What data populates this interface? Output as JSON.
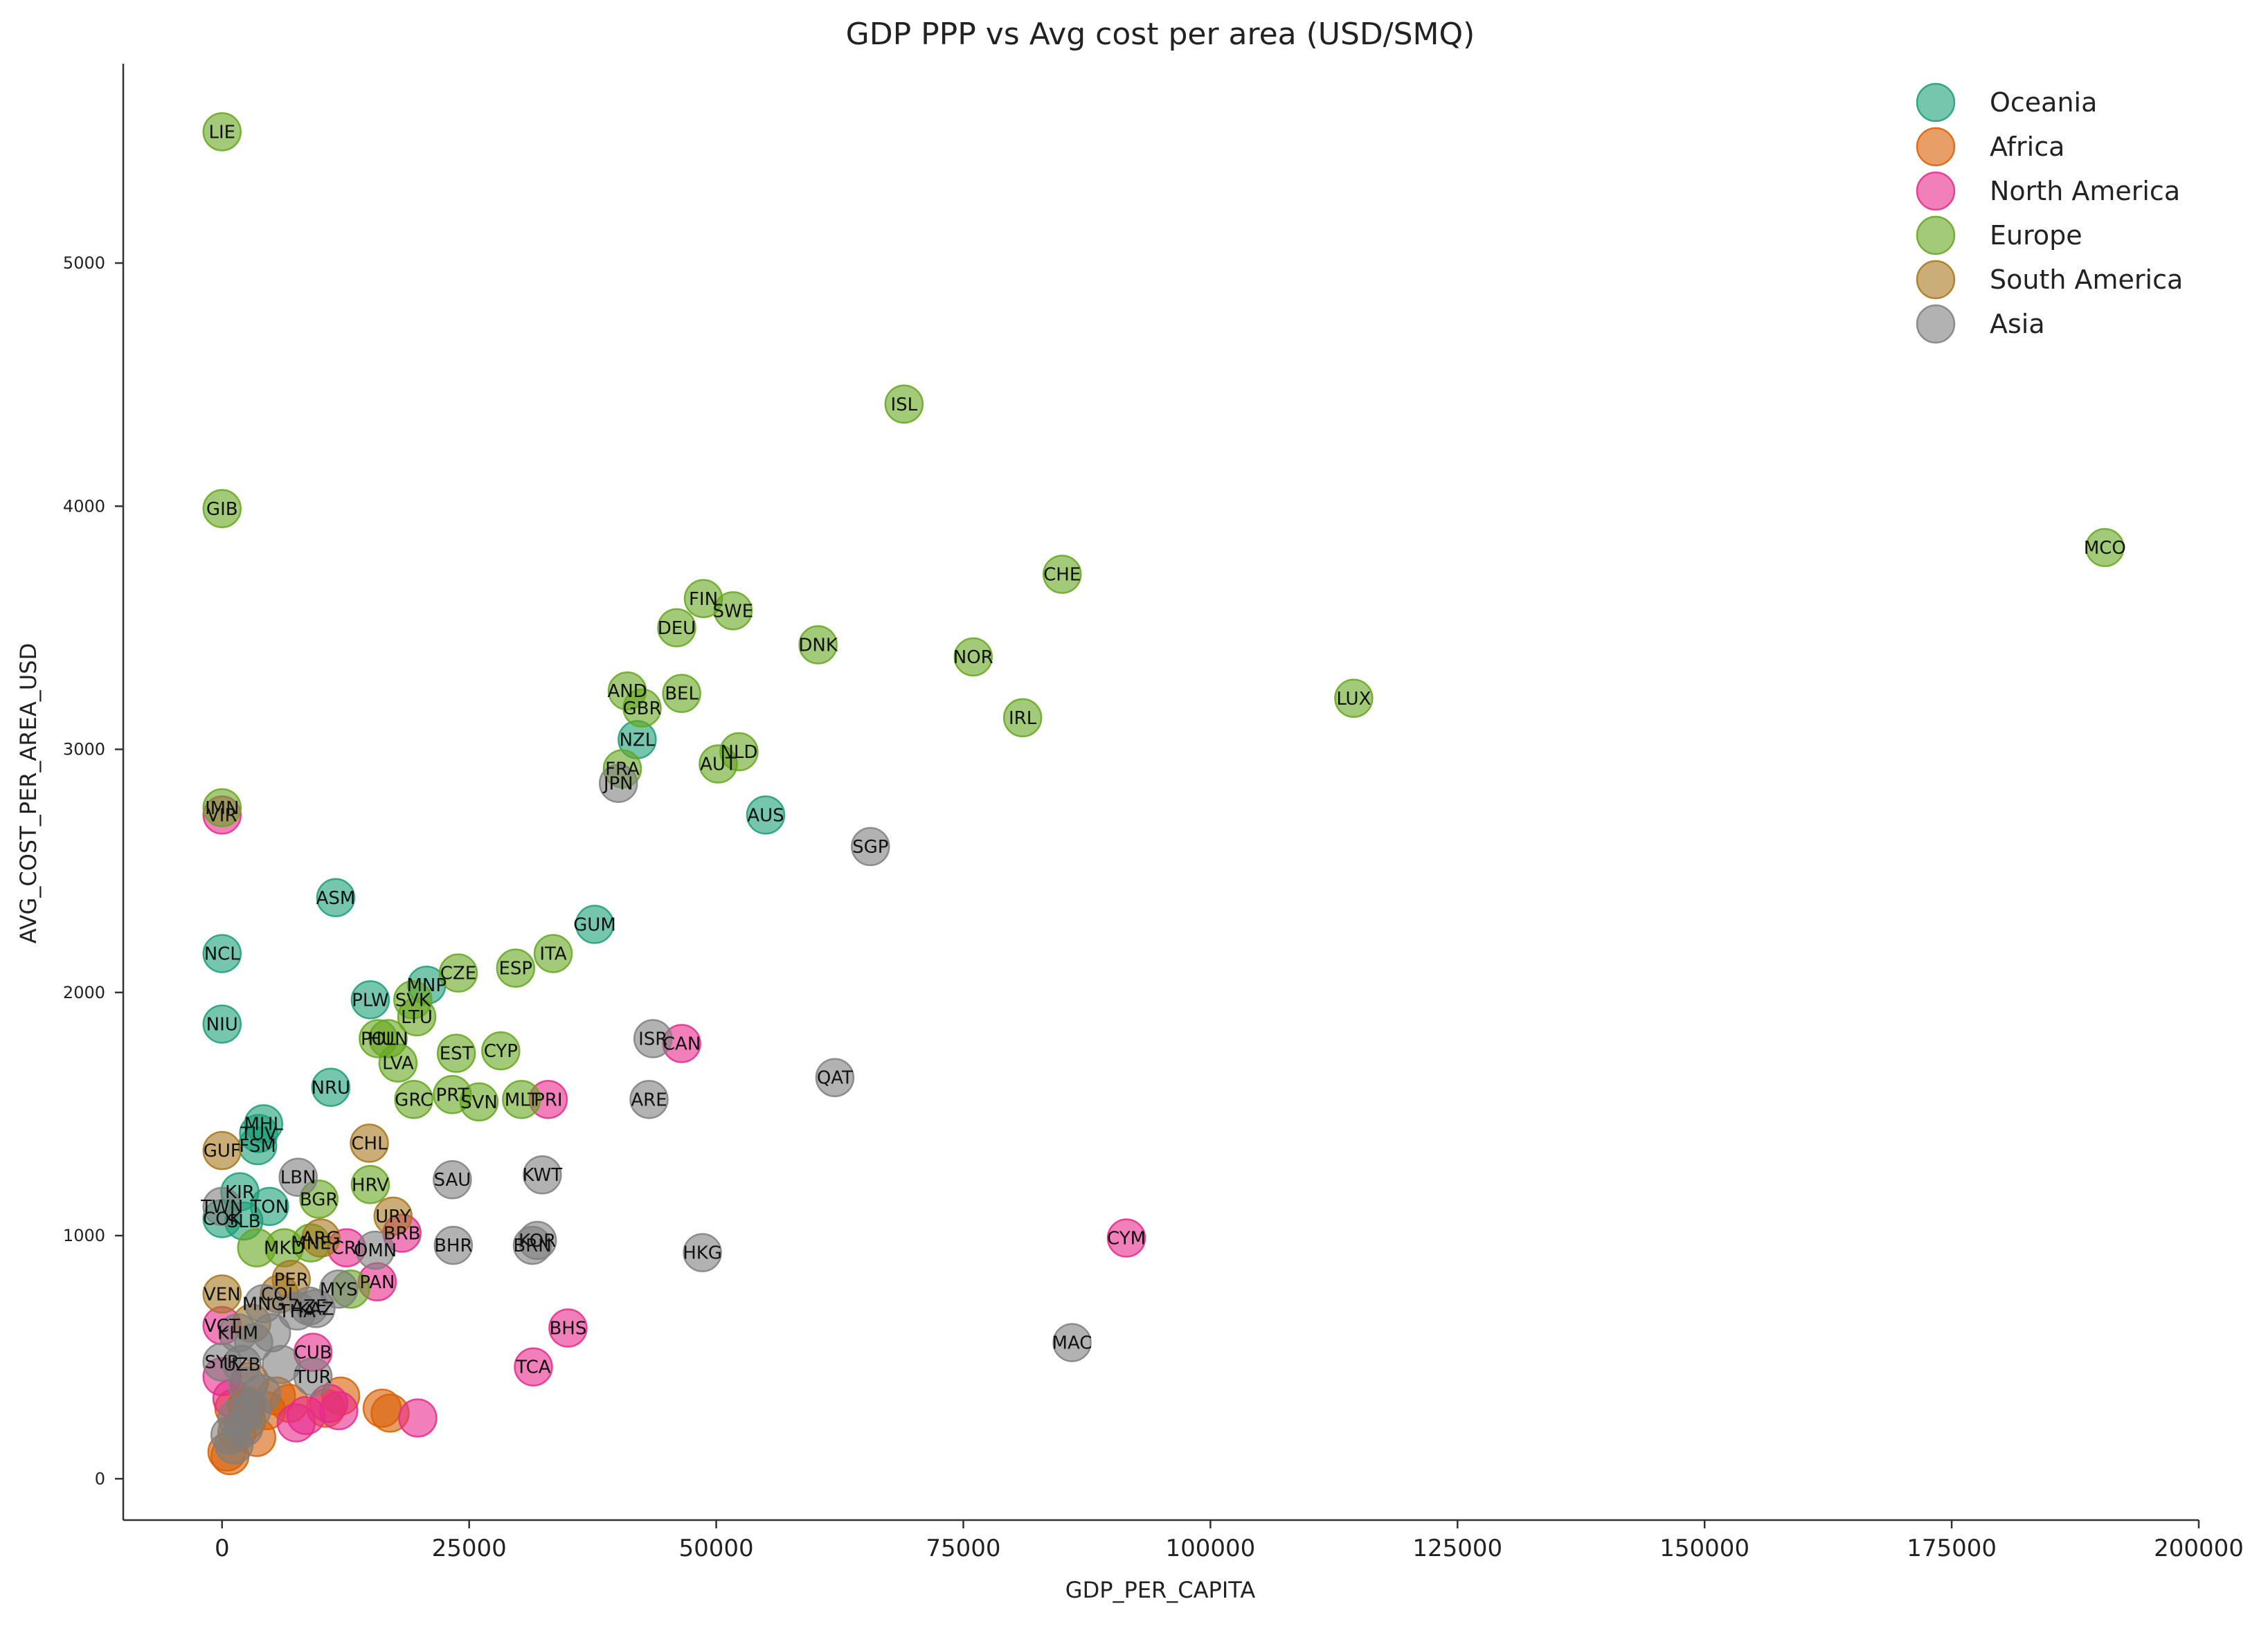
{
  "chart_data": {
    "type": "scatter",
    "title": "GDP PPP vs Avg cost per area (USD/SMQ)",
    "xlabel": "GDP_PER_CAPITA",
    "ylabel": "AVG_COST_PER_AREA_USD",
    "xlim": [
      -10000,
      200000
    ],
    "ylim": [
      -170,
      5820
    ],
    "x_ticks": [
      0,
      25000,
      50000,
      75000,
      100000,
      125000,
      150000,
      175000,
      200000
    ],
    "y_ticks": [
      0,
      1000,
      2000,
      3000,
      4000,
      5000
    ],
    "legend_position": "top-right",
    "grid": false,
    "series": [
      {
        "name": "Oceania",
        "color": "#1b9e77",
        "points": [
          {
            "label": "NZL",
            "x": 42000,
            "y": 3040
          },
          {
            "label": "AUS",
            "x": 55000,
            "y": 2730
          },
          {
            "label": "GUM",
            "x": 37700,
            "y": 2280
          },
          {
            "label": "ASM",
            "x": 11500,
            "y": 2390
          },
          {
            "label": "NCL",
            "x": 0,
            "y": 2160
          },
          {
            "label": "NIU",
            "x": 0,
            "y": 1870
          },
          {
            "label": "PLW",
            "x": 15000,
            "y": 1970
          },
          {
            "label": "MNP",
            "x": 20700,
            "y": 2030
          },
          {
            "label": "NRU",
            "x": 11000,
            "y": 1610
          },
          {
            "label": "MHL",
            "x": 4200,
            "y": 1460
          },
          {
            "label": "TUV",
            "x": 3700,
            "y": 1420
          },
          {
            "label": "FSM",
            "x": 3600,
            "y": 1370
          },
          {
            "label": "KIR",
            "x": 1800,
            "y": 1180
          },
          {
            "label": "TON",
            "x": 4800,
            "y": 1120
          },
          {
            "label": "SLB",
            "x": 2200,
            "y": 1060
          },
          {
            "label": "COK",
            "x": 0,
            "y": 1070
          }
        ]
      },
      {
        "name": "Africa",
        "color": "#d95f02",
        "points": [
          {
            "label": "",
            "x": 16200,
            "y": 290
          },
          {
            "label": "",
            "x": 17000,
            "y": 270
          },
          {
            "label": "",
            "x": 3500,
            "y": 170
          },
          {
            "label": "",
            "x": 500,
            "y": 110
          },
          {
            "label": "",
            "x": 800,
            "y": 95
          },
          {
            "label": "",
            "x": 1500,
            "y": 190
          },
          {
            "label": "",
            "x": 2500,
            "y": 240
          },
          {
            "label": "",
            "x": 4500,
            "y": 280
          },
          {
            "label": "",
            "x": 5500,
            "y": 340
          },
          {
            "label": "",
            "x": 6800,
            "y": 310
          },
          {
            "label": "",
            "x": 2800,
            "y": 400
          },
          {
            "label": "",
            "x": 1200,
            "y": 290
          },
          {
            "label": "",
            "x": 12000,
            "y": 340
          },
          {
            "label": "",
            "x": 10500,
            "y": 290
          }
        ]
      },
      {
        "name": "North America",
        "color": "#e7298a",
        "points": [
          {
            "label": "VIR",
            "x": 0,
            "y": 2730
          },
          {
            "label": "CAN",
            "x": 46500,
            "y": 1790
          },
          {
            "label": "PRI",
            "x": 33000,
            "y": 1560
          },
          {
            "label": "CYM",
            "x": 91500,
            "y": 990
          },
          {
            "label": "BHS",
            "x": 35000,
            "y": 620
          },
          {
            "label": "TCA",
            "x": 31500,
            "y": 460
          },
          {
            "label": "BRB",
            "x": 18200,
            "y": 1010
          },
          {
            "label": "PAN",
            "x": 15700,
            "y": 810
          },
          {
            "label": "CRI",
            "x": 12600,
            "y": 950
          },
          {
            "label": "CUB",
            "x": 9200,
            "y": 520
          },
          {
            "label": "VCT",
            "x": 0,
            "y": 630
          },
          {
            "label": "",
            "x": 19800,
            "y": 250
          },
          {
            "label": "",
            "x": 11800,
            "y": 280
          },
          {
            "label": "",
            "x": 8500,
            "y": 260
          },
          {
            "label": "",
            "x": 7500,
            "y": 230
          },
          {
            "label": "",
            "x": 10800,
            "y": 310
          },
          {
            "label": "",
            "x": 0,
            "y": 420
          },
          {
            "label": "",
            "x": 1000,
            "y": 330
          },
          {
            "label": "",
            "x": 2500,
            "y": 300
          }
        ]
      },
      {
        "name": "Europe",
        "color": "#66a61e",
        "points": [
          {
            "label": "LIE",
            "x": 0,
            "y": 5540
          },
          {
            "label": "ISL",
            "x": 69000,
            "y": 4420
          },
          {
            "label": "GIB",
            "x": 0,
            "y": 3990
          },
          {
            "label": "MCO",
            "x": 190500,
            "y": 3830
          },
          {
            "label": "CHE",
            "x": 85000,
            "y": 3720
          },
          {
            "label": "FIN",
            "x": 48700,
            "y": 3620
          },
          {
            "label": "SWE",
            "x": 51700,
            "y": 3570
          },
          {
            "label": "DEU",
            "x": 46000,
            "y": 3500
          },
          {
            "label": "DNK",
            "x": 60300,
            "y": 3430
          },
          {
            "label": "NOR",
            "x": 76000,
            "y": 3380
          },
          {
            "label": "AND",
            "x": 41000,
            "y": 3240
          },
          {
            "label": "BEL",
            "x": 46500,
            "y": 3230
          },
          {
            "label": "LUX",
            "x": 114500,
            "y": 3210
          },
          {
            "label": "GBR",
            "x": 42500,
            "y": 3170
          },
          {
            "label": "IRL",
            "x": 81000,
            "y": 3130
          },
          {
            "label": "NLD",
            "x": 52300,
            "y": 2990
          },
          {
            "label": "AUT",
            "x": 50200,
            "y": 2940
          },
          {
            "label": "FRA",
            "x": 40500,
            "y": 2920
          },
          {
            "label": "IMN",
            "x": 0,
            "y": 2760
          },
          {
            "label": "ITA",
            "x": 33500,
            "y": 2160
          },
          {
            "label": "ESP",
            "x": 29700,
            "y": 2100
          },
          {
            "label": "CZE",
            "x": 23900,
            "y": 2080
          },
          {
            "label": "SVK",
            "x": 19300,
            "y": 1970
          },
          {
            "label": "LTU",
            "x": 19700,
            "y": 1900
          },
          {
            "label": "POL",
            "x": 15800,
            "y": 1810
          },
          {
            "label": "HUN",
            "x": 16800,
            "y": 1810
          },
          {
            "label": "EST",
            "x": 23700,
            "y": 1750
          },
          {
            "label": "CYP",
            "x": 28200,
            "y": 1760
          },
          {
            "label": "LVA",
            "x": 17800,
            "y": 1710
          },
          {
            "label": "GRC",
            "x": 19400,
            "y": 1560
          },
          {
            "label": "PRT",
            "x": 23300,
            "y": 1580
          },
          {
            "label": "SVN",
            "x": 26000,
            "y": 1550
          },
          {
            "label": "MLT",
            "x": 30300,
            "y": 1560
          },
          {
            "label": "HRV",
            "x": 15000,
            "y": 1210
          },
          {
            "label": "BGR",
            "x": 9800,
            "y": 1150
          },
          {
            "label": "MNE",
            "x": 9000,
            "y": 970
          },
          {
            "label": "MKD",
            "x": 6300,
            "y": 950
          },
          {
            "label": "",
            "x": 3500,
            "y": 950
          },
          {
            "label": "",
            "x": 13000,
            "y": 780
          }
        ]
      },
      {
        "name": "South America",
        "color": "#a6761d",
        "points": [
          {
            "label": "GUF",
            "x": 0,
            "y": 1350
          },
          {
            "label": "CHL",
            "x": 14900,
            "y": 1380
          },
          {
            "label": "URY",
            "x": 17300,
            "y": 1080
          },
          {
            "label": "ARG",
            "x": 10000,
            "y": 990
          },
          {
            "label": "VEN",
            "x": 0,
            "y": 760
          },
          {
            "label": "PER",
            "x": 7000,
            "y": 820
          },
          {
            "label": "COL",
            "x": 5800,
            "y": 760
          },
          {
            "label": "",
            "x": 3000,
            "y": 640
          },
          {
            "label": "",
            "x": 2500,
            "y": 300
          }
        ]
      },
      {
        "name": "Asia",
        "color": "#7f7f7f",
        "points": [
          {
            "label": "JPN",
            "x": 40100,
            "y": 2860
          },
          {
            "label": "SGP",
            "x": 65600,
            "y": 2600
          },
          {
            "label": "ISR",
            "x": 43600,
            "y": 1810
          },
          {
            "label": "QAT",
            "x": 62000,
            "y": 1650
          },
          {
            "label": "ARE",
            "x": 43200,
            "y": 1560
          },
          {
            "label": "KWT",
            "x": 32400,
            "y": 1250
          },
          {
            "label": "SAU",
            "x": 23300,
            "y": 1230
          },
          {
            "label": "LBN",
            "x": 7700,
            "y": 1240
          },
          {
            "label": "TWN",
            "x": 0,
            "y": 1120
          },
          {
            "label": "KOR",
            "x": 31900,
            "y": 980
          },
          {
            "label": "BRN",
            "x": 31400,
            "y": 960
          },
          {
            "label": "BHR",
            "x": 23400,
            "y": 960
          },
          {
            "label": "HKG",
            "x": 48600,
            "y": 930
          },
          {
            "label": "OMN",
            "x": 15500,
            "y": 940
          },
          {
            "label": "MAC",
            "x": 86000,
            "y": 560
          },
          {
            "label": "MYS",
            "x": 11800,
            "y": 780
          },
          {
            "label": "AZE",
            "x": 8800,
            "y": 710
          },
          {
            "label": "KAZ",
            "x": 9500,
            "y": 700
          },
          {
            "label": "THA",
            "x": 7600,
            "y": 690
          },
          {
            "label": "MNG",
            "x": 4200,
            "y": 720
          },
          {
            "label": "KHM",
            "x": 1600,
            "y": 600
          },
          {
            "label": "UZB",
            "x": 2000,
            "y": 470
          },
          {
            "label": "TUR",
            "x": 9200,
            "y": 420
          },
          {
            "label": "SYR",
            "x": 0,
            "y": 480
          },
          {
            "label": "",
            "x": 1500,
            "y": 250
          },
          {
            "label": "",
            "x": 2200,
            "y": 210
          },
          {
            "label": "",
            "x": 3000,
            "y": 280
          },
          {
            "label": "",
            "x": 800,
            "y": 180
          },
          {
            "label": "",
            "x": 4000,
            "y": 350
          },
          {
            "label": "",
            "x": 3200,
            "y": 560
          },
          {
            "label": "",
            "x": 5000,
            "y": 600
          },
          {
            "label": "",
            "x": 6000,
            "y": 470
          },
          {
            "label": "",
            "x": 2600,
            "y": 380
          },
          {
            "label": "",
            "x": 1200,
            "y": 140
          }
        ]
      }
    ]
  }
}
